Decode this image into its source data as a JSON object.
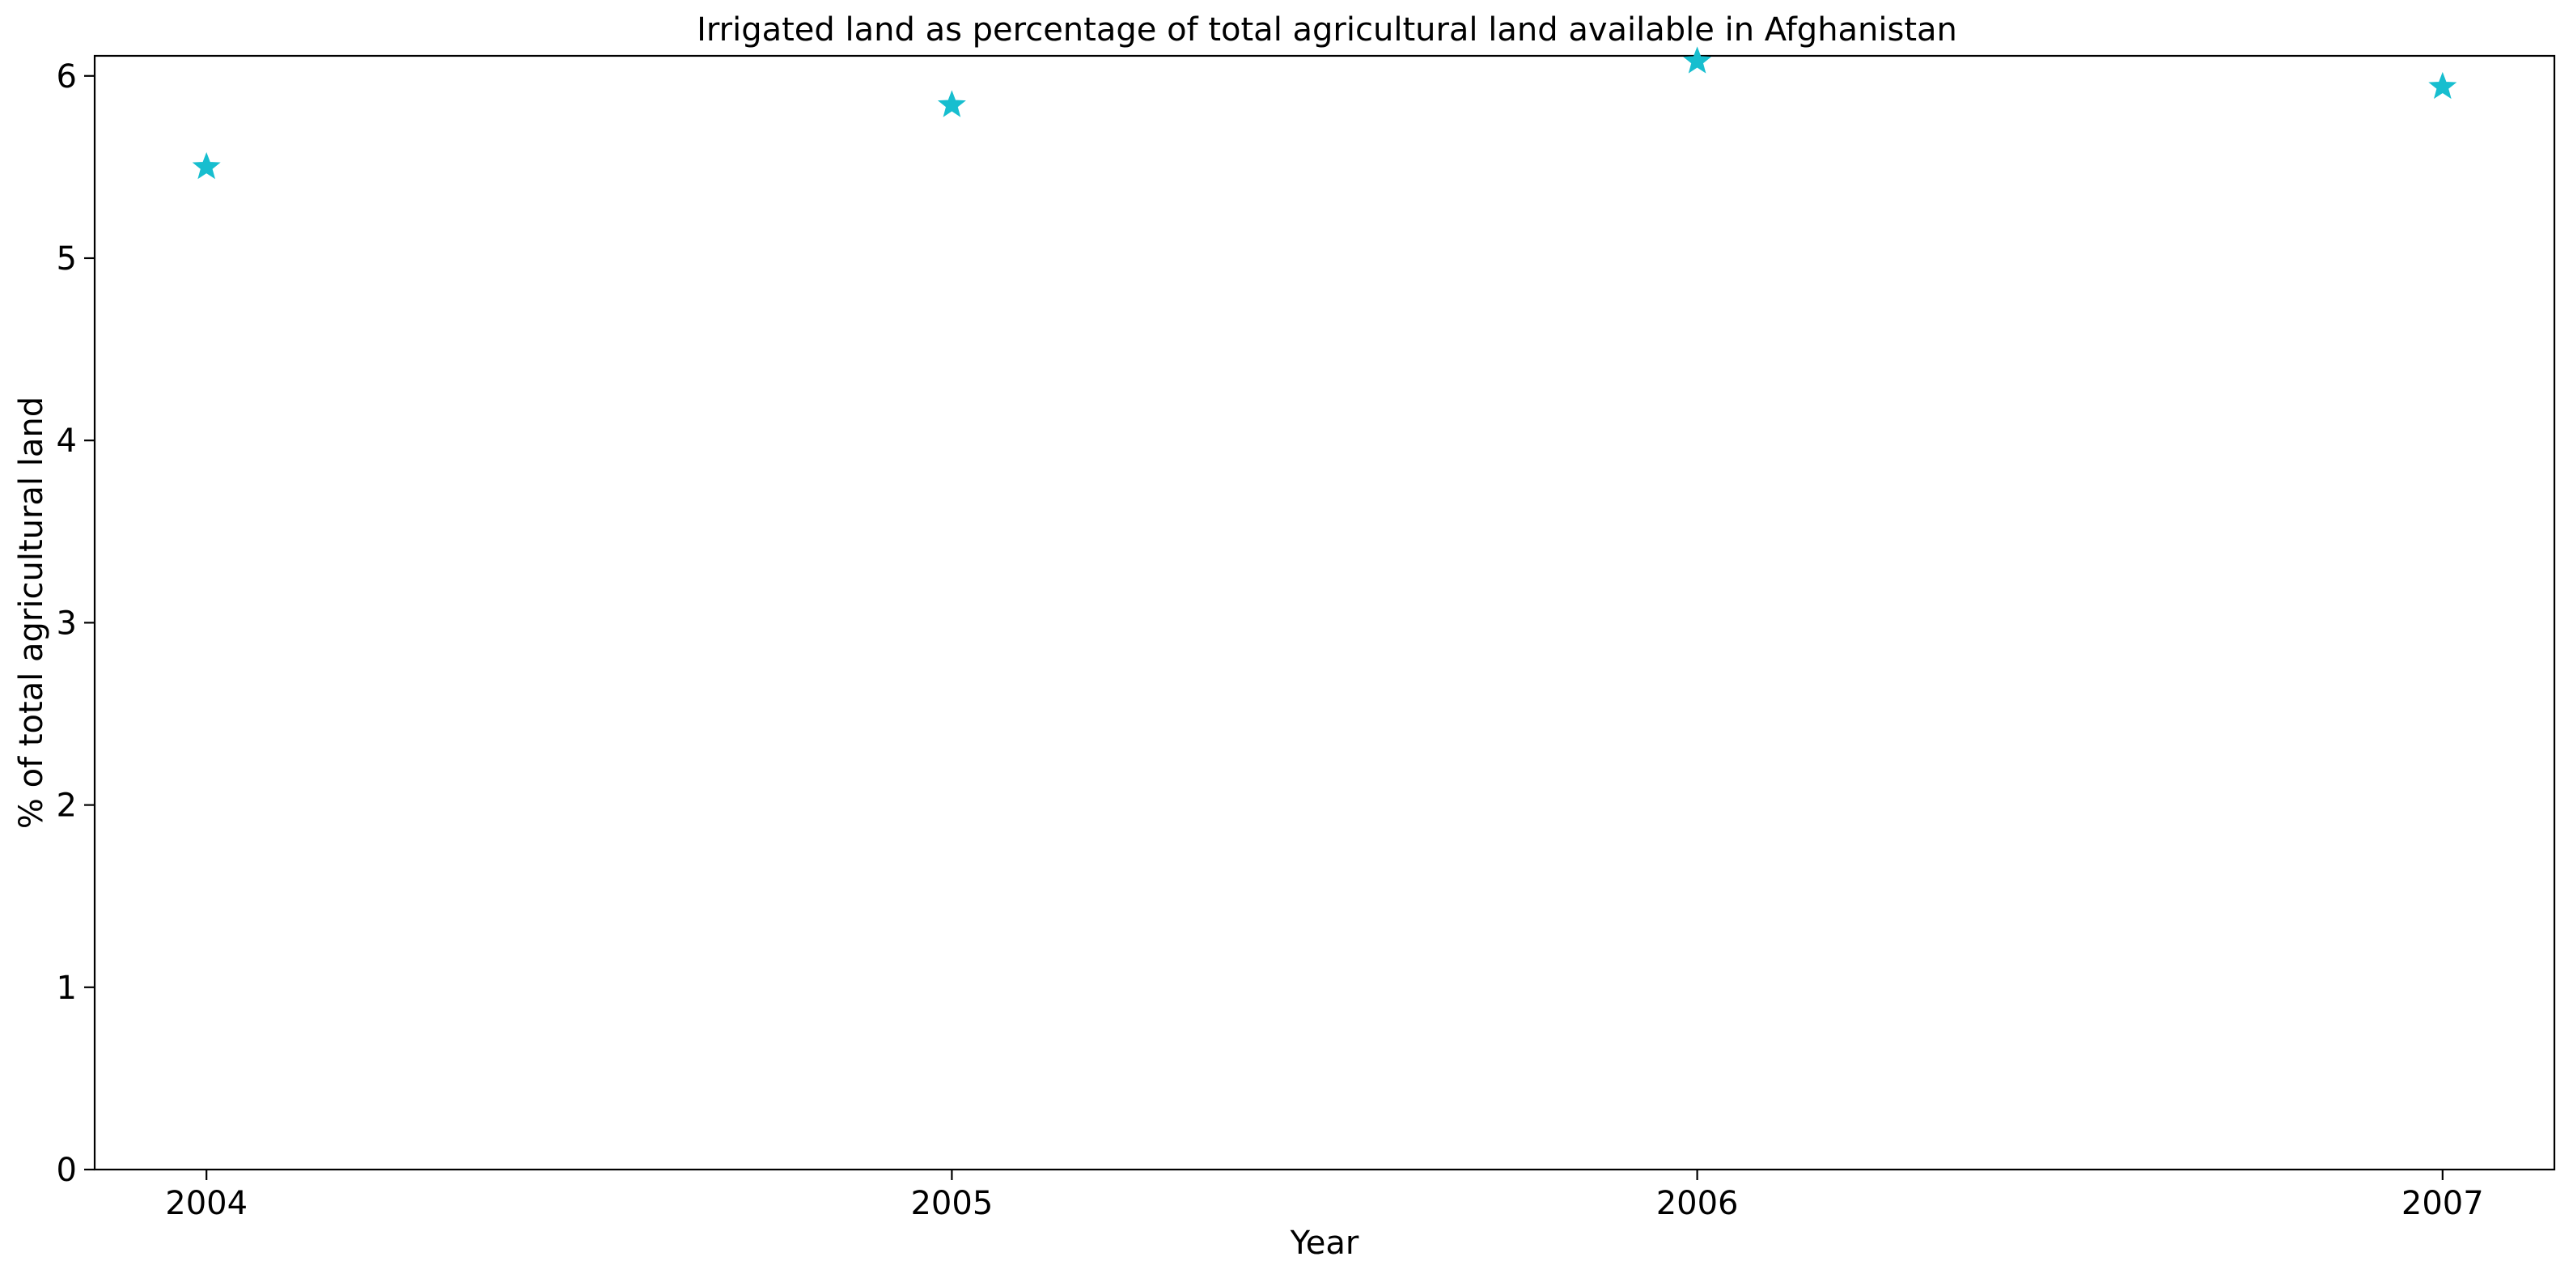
{
  "chart_data": {
    "type": "scatter",
    "title": "Irrigated land as percentage of total agricultural land available in Afghanistan",
    "xlabel": "Year",
    "ylabel": "% of total agricultural land",
    "x": [
      2004,
      2005,
      2006,
      2007
    ],
    "y": [
      5.5,
      5.84,
      6.08,
      5.94
    ],
    "xlim": [
      2003.85,
      2007.15
    ],
    "ylim": [
      0,
      6.11
    ],
    "xticks": [
      2004,
      2005,
      2006,
      2007
    ],
    "yticks": [
      0,
      1,
      2,
      3,
      4,
      5,
      6
    ],
    "marker": "star",
    "marker_color": "#17becf",
    "grid": false,
    "legend": false
  }
}
